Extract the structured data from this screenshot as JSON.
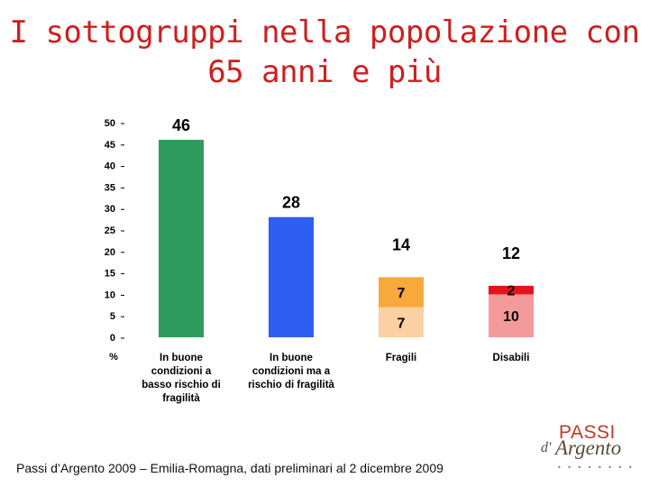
{
  "title": {
    "line1": "I sottogruppi nella popolazione con",
    "line2": "65 anni e più"
  },
  "chart_data": {
    "type": "bar",
    "stacked": true,
    "yunit": "%",
    "ylim": [
      0,
      50
    ],
    "yticks": [
      0,
      5,
      10,
      15,
      20,
      25,
      30,
      35,
      40,
      45,
      50
    ],
    "grid": false,
    "categories": [
      [
        "In buone",
        "condizioni a",
        "basso rischio di",
        "fragilità"
      ],
      [
        "In buone",
        "condizioni ma a",
        "rischio di fragilità"
      ],
      [
        "Fragili"
      ],
      [
        "Disabili"
      ]
    ],
    "totals": [
      46,
      28,
      14,
      12
    ],
    "series": [
      {
        "values": [
          46,
          28,
          7,
          10
        ],
        "segment_labels": [
          "",
          "",
          "7",
          "10"
        ],
        "colors": [
          "#2f9a5e",
          "#2f5ef2",
          "#fbd0a3",
          "#f59a9a"
        ]
      },
      {
        "values": [
          0,
          0,
          7,
          2
        ],
        "segment_labels": [
          "",
          "",
          "7",
          "2"
        ],
        "colors": [
          "#2f9a5e",
          "#2f5ef2",
          "#f7a93b",
          "#e5141b"
        ]
      }
    ]
  },
  "footer": "Passi d’Argento 2009 – Emilia-Romagna, dati preliminari al 2 dicembre 2009",
  "logo": {
    "top": "PASSI",
    "prefix": "d'",
    "main": "Argento",
    "dots": "• • • • • • • •"
  }
}
